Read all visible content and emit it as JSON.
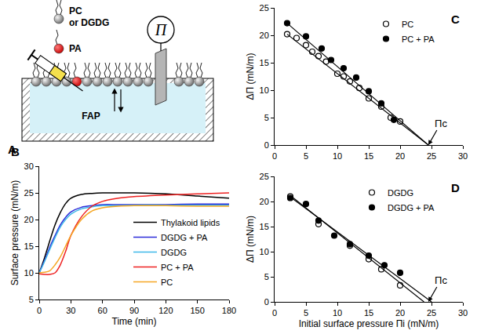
{
  "diagram": {
    "panel_label": "A",
    "lipid_label": [
      "PC",
      "or DGDG"
    ],
    "pa_label": "PA",
    "probe_label": "FAP",
    "pressure_label": "Π"
  },
  "chart_data": [
    {
      "type": "line",
      "panel_label": "B",
      "x_label": "Time (min)",
      "y_label": "Surface pressure (mN/m)",
      "x": [
        0,
        5,
        10,
        15,
        20,
        25,
        30,
        40,
        50,
        60,
        75,
        90,
        120,
        150,
        180
      ],
      "series": [
        {
          "name": "Thylakoid lipids",
          "color": "#000000",
          "line_style": "solid",
          "values": [
            10,
            12.8,
            16,
            19,
            21.3,
            23,
            24,
            24.7,
            24.9,
            25,
            25,
            25,
            24.8,
            24.4,
            24
          ]
        },
        {
          "name": "DGDG + PA",
          "color": "#2b2bd9",
          "line_style": "solid",
          "values": [
            10,
            12.3,
            14.8,
            17,
            19,
            20.4,
            21.4,
            22.3,
            22.6,
            22.8,
            22.8,
            22.8,
            22.8,
            22.9,
            22.9
          ]
        },
        {
          "name": "DGDG",
          "color": "#3fb8e8",
          "line_style": "solid",
          "values": [
            10,
            12.1,
            14.4,
            16.6,
            18.6,
            20,
            21,
            22,
            22.4,
            22.6,
            22.6,
            22.7,
            22.7,
            22.7,
            22.7
          ]
        },
        {
          "name": "PC + PA",
          "color": "#ee2222",
          "line_style": "solid",
          "values": [
            9.8,
            9.7,
            9.7,
            10,
            11.5,
            14,
            17,
            20.5,
            22.5,
            23.4,
            24,
            24.3,
            24.6,
            24.8,
            25
          ]
        },
        {
          "name": "PC",
          "color": "#f5a623",
          "line_style": "solid",
          "values": [
            10,
            10.1,
            10.4,
            11.5,
            13,
            15,
            17,
            20,
            21.6,
            22.2,
            22.5,
            22.6,
            22.6,
            22.5,
            22.5
          ]
        }
      ],
      "xlim": [
        0,
        180
      ],
      "xticks": [
        0,
        30,
        60,
        90,
        120,
        150,
        180
      ],
      "ylim": [
        5,
        30
      ],
      "yticks": [
        5,
        10,
        15,
        20,
        25,
        30
      ],
      "grid": false,
      "legend": "lower right"
    },
    {
      "type": "scatter",
      "panel_label": "C",
      "y_label": "ΔΠ (mN/m)",
      "series": [
        {
          "name": "PC",
          "color": "#000000",
          "marker": "circle-open",
          "x": [
            2,
            3.5,
            5,
            6,
            7,
            8.2,
            10,
            11,
            12,
            13.5,
            15,
            17,
            18.5,
            20
          ],
          "values": [
            20.2,
            19.5,
            18.2,
            17,
            16.2,
            15.2,
            13,
            12.5,
            11.6,
            10.4,
            8.5,
            7,
            5,
            4.3
          ],
          "fit": {
            "x": [
              2,
              24.5
            ],
            "values": [
              20.2,
              0
            ]
          }
        },
        {
          "name": "PC + PA",
          "color": "#000000",
          "marker": "circle",
          "x": [
            2,
            5,
            7.5,
            9,
            11,
            13,
            15,
            17,
            19
          ],
          "values": [
            22.2,
            19.8,
            17.6,
            15.5,
            14,
            12.3,
            9.8,
            7.6,
            4.6
          ],
          "fit": {
            "x": [
              2,
              24.5
            ],
            "values": [
              22.2,
              0
            ]
          }
        }
      ],
      "xlim": [
        0,
        30
      ],
      "xticks": [
        0,
        5,
        10,
        15,
        20,
        25,
        30
      ],
      "ylim": [
        0,
        25
      ],
      "yticks": [
        0,
        5,
        10,
        15,
        20,
        25
      ],
      "grid": false,
      "legend": "upper right",
      "annotations": [
        {
          "text": "Πc",
          "x": 24.5,
          "y": 0
        }
      ]
    },
    {
      "type": "scatter",
      "panel_label": "D",
      "x_label": "Initial surface pressure Πi (mN/m)",
      "y_label": "ΔΠ (mN/m)",
      "series": [
        {
          "name": "DGDG",
          "color": "#000000",
          "marker": "circle-open",
          "x": [
            2.5,
            7,
            12,
            15,
            17,
            20
          ],
          "values": [
            21,
            15.5,
            11.2,
            8.5,
            6.5,
            3.3
          ],
          "fit": {
            "x": [
              2.5,
              23.8
            ],
            "values": [
              21.2,
              0
            ]
          }
        },
        {
          "name": "DGDG + PA",
          "color": "#000000",
          "marker": "circle",
          "x": [
            2.5,
            5,
            7,
            9.5,
            12,
            15,
            17.5,
            20
          ],
          "values": [
            20.7,
            19.5,
            16.2,
            13.2,
            11.5,
            9.2,
            7.3,
            5.8
          ],
          "fit": {
            "x": [
              2.5,
              25
            ],
            "values": [
              20.9,
              0
            ]
          }
        }
      ],
      "xlim": [
        0,
        30
      ],
      "xticks": [
        0,
        5,
        10,
        15,
        20,
        25,
        30
      ],
      "ylim": [
        0,
        25
      ],
      "yticks": [
        0,
        5,
        10,
        15,
        20,
        25
      ],
      "grid": false,
      "legend": "upper right",
      "annotations": [
        {
          "text": "Πc",
          "x": 24.5,
          "y": 0
        }
      ]
    }
  ]
}
